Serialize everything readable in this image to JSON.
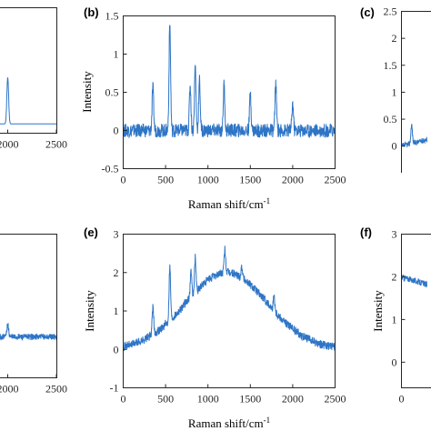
{
  "chart_data": [
    {
      "panel_label": "",
      "type": "line",
      "xlabel": "",
      "ylabel": "",
      "x_ticks": [
        "2000",
        "2500"
      ],
      "y_ticks": [],
      "color": "#2e75c6",
      "peaks": [
        [
          2000,
          1.0
        ]
      ],
      "baseline": "flat"
    },
    {
      "panel_label": "(b)",
      "type": "line",
      "xlabel": "Raman shift/cm",
      "xlabel_sup": "-1",
      "ylabel": "Intensity",
      "xlim": [
        0,
        2500
      ],
      "ylim": [
        -0.5,
        1.5
      ],
      "x_ticks": [
        "0",
        "500",
        "1000",
        "1500",
        "2000",
        "2500"
      ],
      "y_ticks": [
        "-0.5",
        "0",
        "0.5",
        "1",
        "1.5"
      ],
      "color": "#2e75c6",
      "peaks": [
        [
          350,
          0.55
        ],
        [
          550,
          1.4
        ],
        [
          790,
          0.6
        ],
        [
          850,
          0.85
        ],
        [
          900,
          0.65
        ],
        [
          1190,
          0.6
        ],
        [
          1500,
          0.5
        ],
        [
          1800,
          0.6
        ],
        [
          2000,
          0.35
        ]
      ],
      "baseline": "flat"
    },
    {
      "panel_label": "(c)",
      "type": "line",
      "xlabel": "",
      "ylabel": "",
      "y_ticks": [
        "0",
        "0.5",
        "1",
        "1.5",
        "2",
        "2.5"
      ],
      "color": "#2e75c6",
      "baseline": "rising"
    },
    {
      "panel_label": "",
      "type": "line",
      "xlabel": "",
      "ylabel": "",
      "x_ticks": [
        "2000",
        "2500"
      ],
      "y_ticks": [],
      "color": "#2e75c6",
      "baseline": "flat"
    },
    {
      "panel_label": "(e)",
      "type": "line",
      "xlabel": "Raman shift/cm",
      "xlabel_sup": "-1",
      "ylabel": "Intensity",
      "xlim": [
        0,
        2500
      ],
      "ylim": [
        -1,
        3
      ],
      "x_ticks": [
        "0",
        "500",
        "1000",
        "1500",
        "2000",
        "2500"
      ],
      "y_ticks": [
        "-1",
        "0",
        "1",
        "2",
        "3"
      ],
      "color": "#2e75c6",
      "peaks": [
        [
          350,
          0.7
        ],
        [
          550,
          1.4
        ],
        [
          800,
          0.7
        ],
        [
          850,
          0.9
        ],
        [
          1200,
          0.6
        ],
        [
          1400,
          0.3
        ],
        [
          1780,
          0.4
        ]
      ],
      "baseline": "broad_hump",
      "hump_center": 1220,
      "hump_height": 2.0
    },
    {
      "panel_label": "(f)",
      "type": "line",
      "xlabel": "",
      "ylabel": "Intensity",
      "x_ticks": [
        "0"
      ],
      "y_ticks": [
        "0",
        "1",
        "2",
        "3"
      ],
      "color": "#2e75c6",
      "baseline": "falling"
    }
  ]
}
